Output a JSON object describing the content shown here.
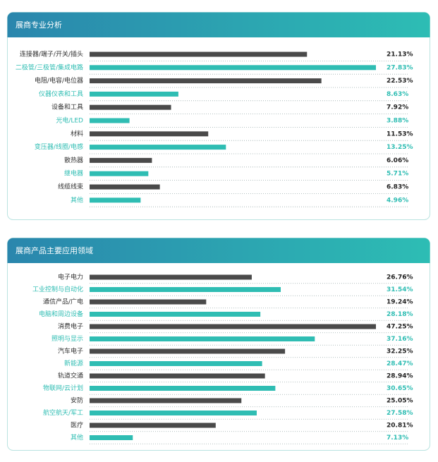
{
  "chart_data": [
    {
      "type": "bar",
      "title": "展商专业分析",
      "categories": [
        "连接器/端子/开关/插头",
        "二极管/三极管/集成电路",
        "电阻/电容/电位器",
        "仪器仪表和工具",
        "设备和工具",
        "光电/LED",
        "材料",
        "变压器/线圈/电感",
        "散热器",
        "继电器",
        "线缆线束",
        "其他"
      ],
      "values": [
        21.13,
        27.83,
        22.53,
        8.63,
        7.92,
        3.88,
        11.53,
        13.25,
        6.06,
        5.71,
        6.83,
        4.96
      ],
      "value_labels": [
        "21.13%",
        "27.83%",
        "22.53%",
        "8.63%",
        "7.92%",
        "3.88%",
        "11.53%",
        "13.25%",
        "6.06%",
        "5.71%",
        "6.83%",
        "4.96%"
      ],
      "colors": [
        "#4a4a4a",
        "#2fbdb3",
        "#4a4a4a",
        "#2fbdb3",
        "#4a4a4a",
        "#2fbdb3",
        "#4a4a4a",
        "#2fbdb3",
        "#4a4a4a",
        "#2fbdb3",
        "#4a4a4a",
        "#2fbdb3"
      ]
    },
    {
      "type": "bar",
      "title": "展商产品主要应用领域",
      "categories": [
        "电子电力",
        "工业控制与自动化",
        "通信产品/广电",
        "电脑和周边设备",
        "消费电子",
        "照明与显示",
        "汽车电子",
        "新能源",
        "轨道交通",
        "物联网/云计划",
        "安防",
        "航空航天/军工",
        "医疗",
        "其他"
      ],
      "values": [
        26.76,
        31.54,
        19.24,
        28.18,
        47.25,
        37.16,
        32.25,
        28.47,
        28.94,
        30.65,
        25.05,
        27.58,
        20.81,
        7.13
      ],
      "value_labels": [
        "26.76%",
        "31.54%",
        "19.24%",
        "28.18%",
        "47.25%",
        "37.16%",
        "32.25%",
        "28.47%",
        "28.94%",
        "30.65%",
        "25.05%",
        "27.58%",
        "20.81%",
        "7.13%"
      ],
      "colors": [
        "#4a4a4a",
        "#2fbdb3",
        "#4a4a4a",
        "#2fbdb3",
        "#4a4a4a",
        "#2fbdb3",
        "#4a4a4a",
        "#2fbdb3",
        "#4a4a4a",
        "#2fbdb3",
        "#4a4a4a",
        "#2fbdb3",
        "#4a4a4a",
        "#2fbdb3"
      ]
    }
  ]
}
